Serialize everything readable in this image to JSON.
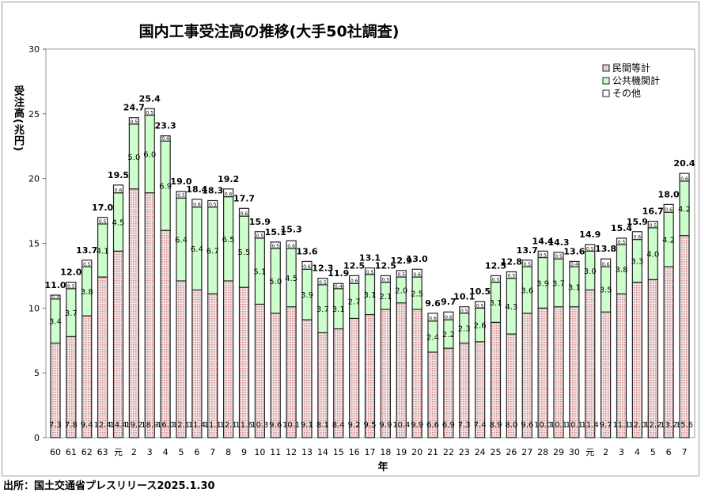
{
  "source": "出所：国土交通省プレスリリース2025.1.30",
  "chart_data": {
    "type": "bar",
    "stacked": true,
    "title": "国内工事受注高の推移(大手50社調査)",
    "xlabel": "年",
    "ylabel": "受注高(兆円)",
    "ylim": [
      0,
      30
    ],
    "yticks": [
      0,
      5,
      10,
      15,
      20,
      25,
      30
    ],
    "legend_position": "top-right",
    "categories": [
      "60",
      "61",
      "62",
      "63",
      "元",
      "2",
      "3",
      "4",
      "5",
      "6",
      "7",
      "8",
      "9",
      "10",
      "11",
      "12",
      "13",
      "14",
      "15",
      "16",
      "17",
      "18",
      "19",
      "20",
      "21",
      "22",
      "23",
      "24",
      "25",
      "26",
      "27",
      "28",
      "29",
      "30",
      "元",
      "2",
      "3",
      "4",
      "5",
      "6",
      "7"
    ],
    "series": [
      {
        "name": "民間等計",
        "color": "#e8c8c8",
        "values": [
          7.3,
          7.8,
          9.4,
          12.4,
          14.4,
          19.2,
          18.9,
          16.0,
          12.1,
          11.4,
          11.1,
          12.1,
          11.6,
          10.3,
          9.6,
          10.1,
          9.1,
          8.1,
          8.4,
          9.2,
          9.5,
          9.9,
          10.4,
          9.9,
          6.6,
          6.9,
          7.3,
          7.4,
          8.9,
          8.0,
          9.6,
          10.0,
          10.1,
          10.1,
          11.4,
          9.7,
          11.1,
          12.0,
          12.2,
          13.2,
          15.6
        ]
      },
      {
        "name": "公共機関計",
        "color": "#ccffcc",
        "values": [
          3.4,
          3.7,
          3.8,
          4.1,
          4.5,
          5.0,
          6.0,
          6.9,
          6.4,
          6.4,
          6.7,
          6.5,
          5.5,
          5.1,
          5.0,
          4.5,
          3.9,
          3.7,
          3.1,
          2.7,
          3.1,
          2.1,
          2.0,
          2.5,
          2.4,
          2.2,
          2.3,
          2.6,
          3.1,
          4.3,
          3.6,
          3.9,
          3.7,
          3.1,
          3.0,
          3.5,
          3.8,
          3.3,
          4.0,
          4.2,
          4.2
        ]
      },
      {
        "name": "その他",
        "color": "#ffffff",
        "values": [
          0.3,
          0.5,
          0.5,
          0.5,
          0.6,
          0.5,
          0.5,
          0.4,
          0.5,
          0.6,
          0.5,
          0.6,
          0.6,
          0.5,
          0.5,
          0.6,
          0.6,
          0.5,
          0.4,
          0.6,
          0.5,
          0.5,
          0.5,
          0.6,
          0.6,
          0.6,
          0.5,
          0.5,
          0.5,
          0.5,
          0.5,
          0.5,
          0.5,
          0.4,
          0.5,
          0.6,
          0.5,
          0.6,
          0.5,
          0.6,
          0.6
        ]
      }
    ],
    "totals": [
      11.0,
      12.0,
      13.7,
      17.0,
      19.5,
      24.7,
      25.4,
      23.3,
      19.0,
      18.4,
      18.3,
      19.2,
      17.7,
      15.9,
      15.1,
      15.3,
      13.6,
      12.3,
      11.9,
      12.5,
      13.1,
      12.5,
      12.9,
      13.0,
      9.6,
      9.7,
      10.1,
      10.5,
      12.5,
      12.8,
      13.7,
      14.4,
      14.3,
      13.6,
      14.9,
      13.8,
      15.4,
      15.9,
      16.7,
      18.0,
      20.4
    ]
  }
}
